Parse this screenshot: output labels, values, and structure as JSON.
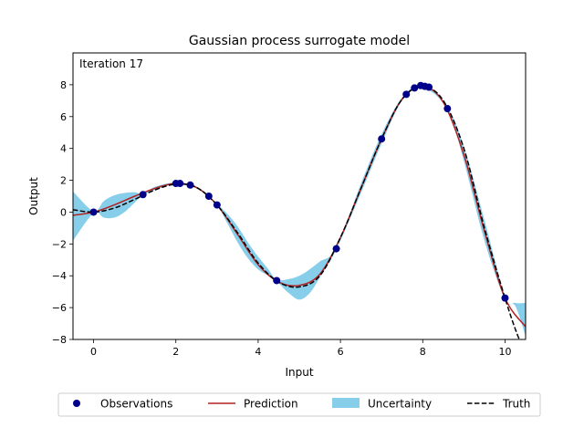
{
  "chart_data": {
    "type": "line",
    "title": "Gaussian process surrogate model",
    "annotation": "Iteration 17",
    "xlabel": "Input",
    "ylabel": "Output",
    "xlim": [
      -0.5,
      10.5
    ],
    "ylim": [
      -8,
      10
    ],
    "xticks": [
      0,
      2,
      4,
      6,
      8,
      10
    ],
    "yticks": [
      -8,
      -6,
      -4,
      -2,
      0,
      2,
      4,
      6,
      8
    ],
    "grid": false,
    "legend_placement": "bottom-center, below plot",
    "colors": {
      "observations": "#00008b",
      "prediction": "#b22222",
      "uncertainty": "#87ceeb",
      "truth": "#000000"
    },
    "series": [
      {
        "name": "Observations",
        "kind": "scatter",
        "x": [
          0.0,
          1.2,
          2.0,
          2.1,
          2.35,
          2.8,
          3.0,
          4.45,
          5.9,
          7.0,
          7.6,
          7.8,
          7.95,
          8.05,
          8.15,
          8.6,
          10.0
        ],
        "y": [
          0.0,
          1.1,
          1.8,
          1.8,
          1.7,
          1.0,
          0.45,
          -4.3,
          -2.3,
          4.6,
          7.4,
          7.8,
          7.95,
          7.9,
          7.85,
          6.5,
          -5.4
        ]
      },
      {
        "name": "Prediction",
        "kind": "line",
        "x": [
          -0.5,
          0.0,
          0.5,
          1.0,
          1.5,
          2.0,
          2.5,
          3.0,
          3.5,
          4.0,
          4.5,
          5.0,
          5.5,
          6.0,
          6.5,
          7.0,
          7.5,
          8.0,
          8.5,
          9.0,
          9.5,
          10.0,
          10.5
        ],
        "y": [
          -0.2,
          0.0,
          0.45,
          1.0,
          1.5,
          1.8,
          1.55,
          0.45,
          -1.4,
          -3.3,
          -4.4,
          -4.6,
          -3.9,
          -1.6,
          1.5,
          4.6,
          7.1,
          7.9,
          6.9,
          3.6,
          -1.2,
          -5.4,
          -7.2
        ]
      },
      {
        "name": "Uncertainty",
        "kind": "band",
        "x": [
          -0.5,
          0.0,
          0.25,
          0.5,
          0.75,
          1.0,
          1.2,
          1.5,
          2.0,
          2.5,
          3.0,
          3.25,
          3.5,
          3.75,
          4.0,
          4.25,
          4.45,
          4.75,
          5.0,
          5.25,
          5.5,
          5.9,
          6.5,
          7.0,
          7.5,
          8.0,
          8.6,
          9.0,
          9.5,
          10.0,
          10.25,
          10.5
        ],
        "lower": [
          -1.8,
          -0.05,
          -0.35,
          -0.35,
          0.0,
          0.6,
          1.05,
          1.4,
          1.75,
          1.5,
          0.4,
          -0.7,
          -1.9,
          -2.9,
          -3.6,
          -4.0,
          -4.35,
          -5.1,
          -5.5,
          -5.1,
          -4.1,
          -2.35,
          1.2,
          4.3,
          7.0,
          7.8,
          6.45,
          3.2,
          -1.8,
          -5.5,
          -5.9,
          -7.8
        ],
        "upper": [
          1.3,
          0.05,
          0.7,
          1.05,
          1.2,
          1.25,
          1.15,
          1.6,
          1.85,
          1.6,
          0.5,
          -0.1,
          -0.9,
          -1.9,
          -2.8,
          -3.6,
          -4.25,
          -4.2,
          -4.0,
          -3.6,
          -3.1,
          -2.25,
          1.8,
          4.9,
          7.2,
          8.0,
          6.55,
          4.1,
          -0.5,
          -5.3,
          -5.7,
          -5.7
        ]
      },
      {
        "name": "Truth",
        "kind": "dashed",
        "x": [
          -0.5,
          0.0,
          0.5,
          1.0,
          1.5,
          2.0,
          2.5,
          3.0,
          3.5,
          4.0,
          4.5,
          5.0,
          5.5,
          6.0,
          6.5,
          7.0,
          7.5,
          8.0,
          8.5,
          9.0,
          9.5,
          10.0,
          10.3,
          10.5
        ],
        "y": [
          0.15,
          0.0,
          0.25,
          0.8,
          1.4,
          1.75,
          1.55,
          0.45,
          -1.3,
          -3.2,
          -4.4,
          -4.7,
          -4.0,
          -1.6,
          1.5,
          4.6,
          7.1,
          7.9,
          7.0,
          4.0,
          -1.0,
          -5.4,
          -7.7,
          -8.8
        ]
      }
    ],
    "legend": [
      "Observations",
      "Prediction",
      "Uncertainty",
      "Truth"
    ]
  }
}
